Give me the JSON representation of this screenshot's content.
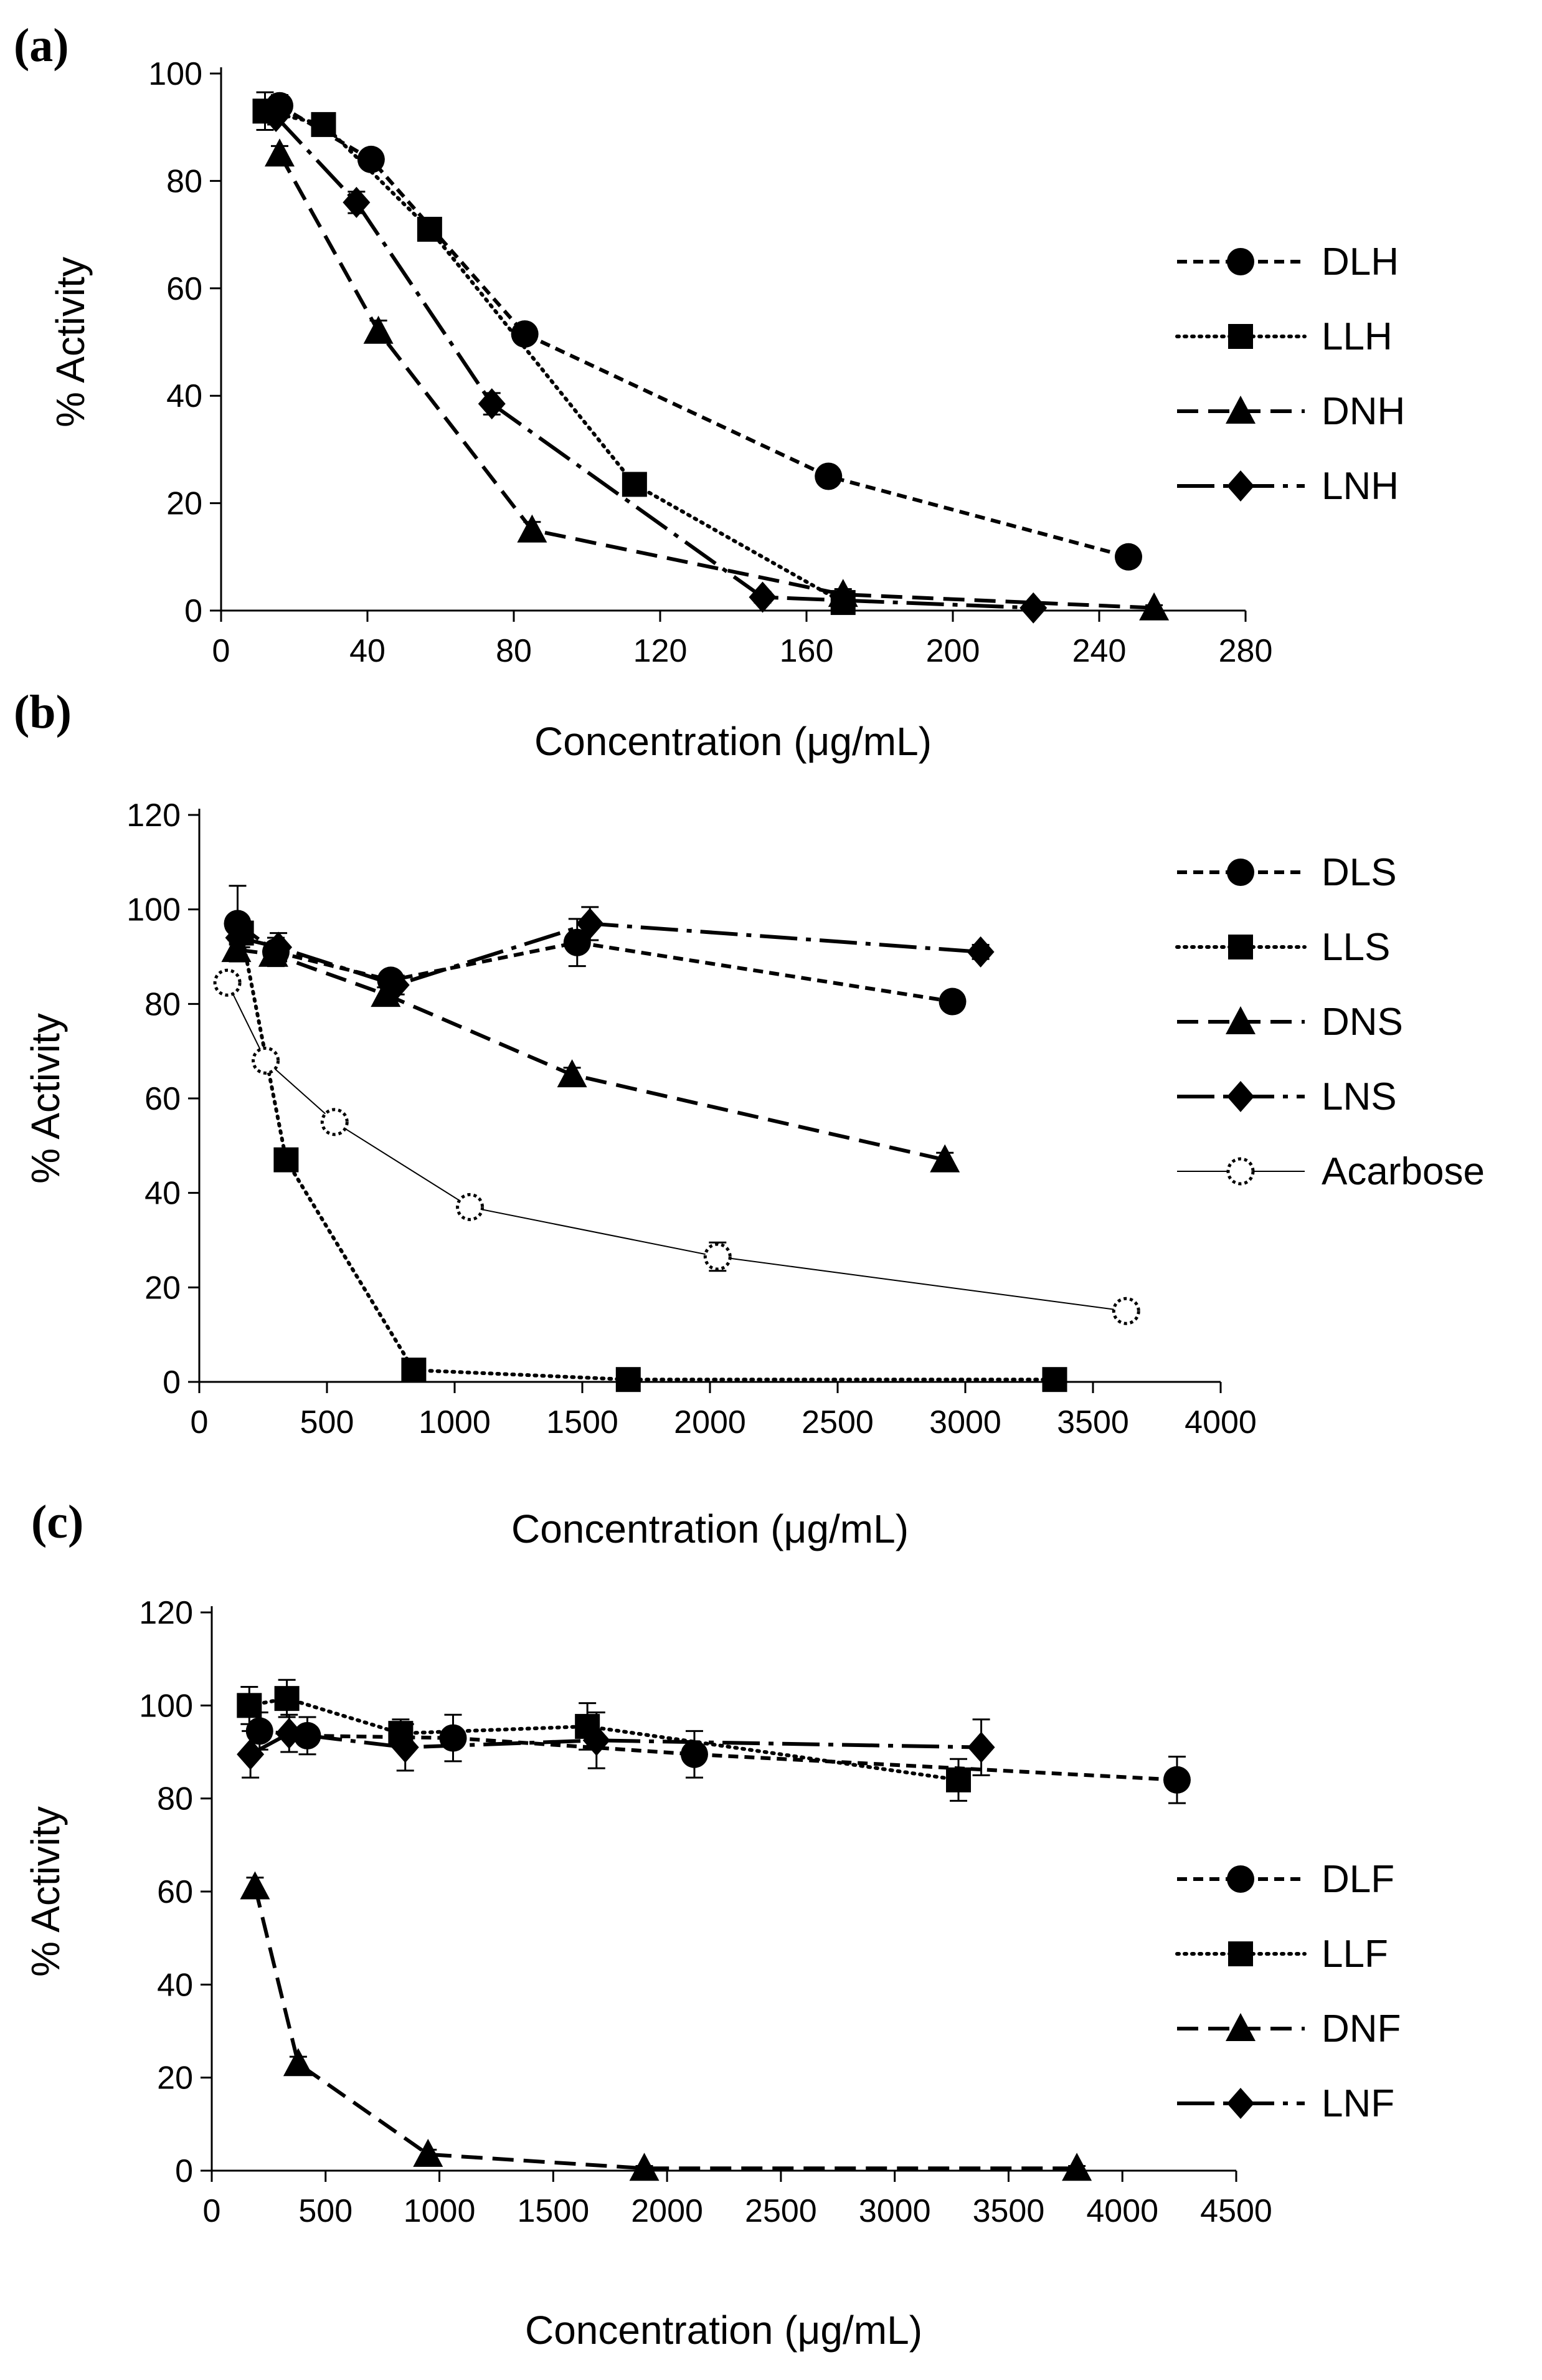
{
  "chart_data": [
    {
      "panel": "(a)",
      "type": "line",
      "xlabel": "Concentration (μg/mL)",
      "ylabel": "% Activity",
      "xlim": [
        0,
        280
      ],
      "ylim": [
        0,
        100
      ],
      "xticks": [
        0,
        40,
        80,
        120,
        160,
        200,
        240,
        280
      ],
      "yticks": [
        0,
        20,
        40,
        60,
        80,
        100
      ],
      "legend_position": "right",
      "series": [
        {
          "name": "DLH",
          "marker": "circle",
          "dash": "16,10",
          "width": 6,
          "x": [
            16,
            41,
            83,
            166,
            248
          ],
          "y": [
            94,
            84,
            51.5,
            25,
            10
          ],
          "err": [
            2,
            1.5,
            1.5,
            1,
            1.5
          ]
        },
        {
          "name": "LLH",
          "marker": "square",
          "dash": "3,9",
          "width": 6,
          "x": [
            12,
            28,
            57,
            113,
            170
          ],
          "y": [
            93,
            90.5,
            71,
            23.5,
            1.5
          ],
          "err": [
            3.5,
            2,
            1.5,
            1.5,
            1
          ]
        },
        {
          "name": "DNH",
          "marker": "triangle",
          "dash": "34,16",
          "width": 6,
          "x": [
            16,
            43,
            85,
            170,
            255
          ],
          "y": [
            85,
            52,
            15,
            3,
            0.5
          ],
          "err": [
            1.5,
            2,
            1.5,
            1,
            0.5
          ]
        },
        {
          "name": "LNH",
          "marker": "diamond",
          "dash": "60,14,8,14",
          "width": 6,
          "x": [
            15,
            37,
            74,
            148,
            222
          ],
          "y": [
            92,
            76,
            38.5,
            2.5,
            0.5
          ],
          "err": [
            1.5,
            2,
            2,
            1,
            0.5
          ]
        }
      ]
    },
    {
      "panel": "(b)",
      "type": "line",
      "xlabel": "Concentration (μg/mL)",
      "ylabel": "% Activity",
      "xlim": [
        0,
        4000
      ],
      "ylim": [
        0,
        120
      ],
      "xticks": [
        0,
        500,
        1000,
        1500,
        2000,
        2500,
        3000,
        3500,
        4000
      ],
      "yticks": [
        0,
        20,
        40,
        60,
        80,
        100,
        120
      ],
      "legend_position": "right",
      "series": [
        {
          "name": "DLS",
          "marker": "circle",
          "dash": "16,10",
          "width": 6,
          "x": [
            150,
            300,
            750,
            1480,
            2950
          ],
          "y": [
            97,
            91,
            85,
            93,
            80.5
          ],
          "err": [
            8,
            3,
            2,
            5,
            1.5
          ]
        },
        {
          "name": "LLS",
          "marker": "square",
          "dash": "3,9",
          "width": 6,
          "x": [
            165,
            340,
            840,
            1680,
            3350
          ],
          "y": [
            95,
            47,
            2.5,
            0.5,
            0.5
          ],
          "err": [
            3,
            2,
            1,
            0.5,
            0.5
          ]
        },
        {
          "name": "DNS",
          "marker": "triangle",
          "dash": "34,16",
          "width": 6,
          "x": [
            145,
            290,
            730,
            1460,
            2920
          ],
          "y": [
            91.5,
            90.5,
            82,
            65,
            47
          ],
          "err": [
            2,
            2,
            1.5,
            1.5,
            1.5
          ]
        },
        {
          "name": "LNS",
          "marker": "diamond",
          "dash": "60,14,8,14",
          "width": 6,
          "x": [
            155,
            310,
            770,
            1530,
            3060
          ],
          "y": [
            94,
            92,
            84,
            97,
            91
          ],
          "err": [
            2,
            3,
            2,
            3.5,
            1.5
          ]
        },
        {
          "name": "Acarbose",
          "marker": "open-circle",
          "dash": "",
          "width": 2,
          "x": [
            110,
            260,
            530,
            1060,
            2030,
            3630
          ],
          "y": [
            84.5,
            68,
            55,
            37,
            26.5,
            15
          ],
          "err": [
            1.5,
            1.5,
            1,
            1,
            3,
            1
          ]
        }
      ]
    },
    {
      "panel": "(c)",
      "type": "line",
      "xlabel": "Concentration (μg/mL)",
      "ylabel": "% Activity",
      "xlim": [
        0,
        4500
      ],
      "ylim": [
        0,
        120
      ],
      "xticks": [
        0,
        500,
        1000,
        1500,
        2000,
        2500,
        3000,
        3500,
        4000,
        4500
      ],
      "yticks": [
        0,
        20,
        40,
        60,
        80,
        100,
        120
      ],
      "legend_position": "right",
      "series": [
        {
          "name": "DLF",
          "marker": "circle",
          "dash": "16,10",
          "width": 6,
          "x": [
            210,
            420,
            1060,
            2120,
            4240
          ],
          "y": [
            94.5,
            93.5,
            93,
            89.5,
            84
          ],
          "err": [
            4,
            4,
            5,
            5,
            5
          ]
        },
        {
          "name": "LLF",
          "marker": "square",
          "dash": "3,9",
          "width": 6,
          "x": [
            165,
            330,
            830,
            1650,
            3280
          ],
          "y": [
            100,
            101.5,
            94,
            95.5,
            84
          ],
          "err": [
            4,
            4,
            3,
            5,
            4.5
          ]
        },
        {
          "name": "DNF",
          "marker": "triangle",
          "dash": "34,16",
          "width": 6,
          "x": [
            190,
            380,
            950,
            1900,
            3800
          ],
          "y": [
            61,
            23,
            3.5,
            0.5,
            0.5
          ],
          "err": [
            2,
            1.5,
            1,
            0.5,
            0.5
          ]
        },
        {
          "name": "LNF",
          "marker": "diamond",
          "dash": "60,14,8,14",
          "width": 6,
          "x": [
            170,
            340,
            850,
            1690,
            3380
          ],
          "y": [
            89.5,
            94,
            91,
            92.5,
            91
          ],
          "err": [
            5,
            4,
            5,
            6,
            6
          ]
        }
      ]
    }
  ]
}
